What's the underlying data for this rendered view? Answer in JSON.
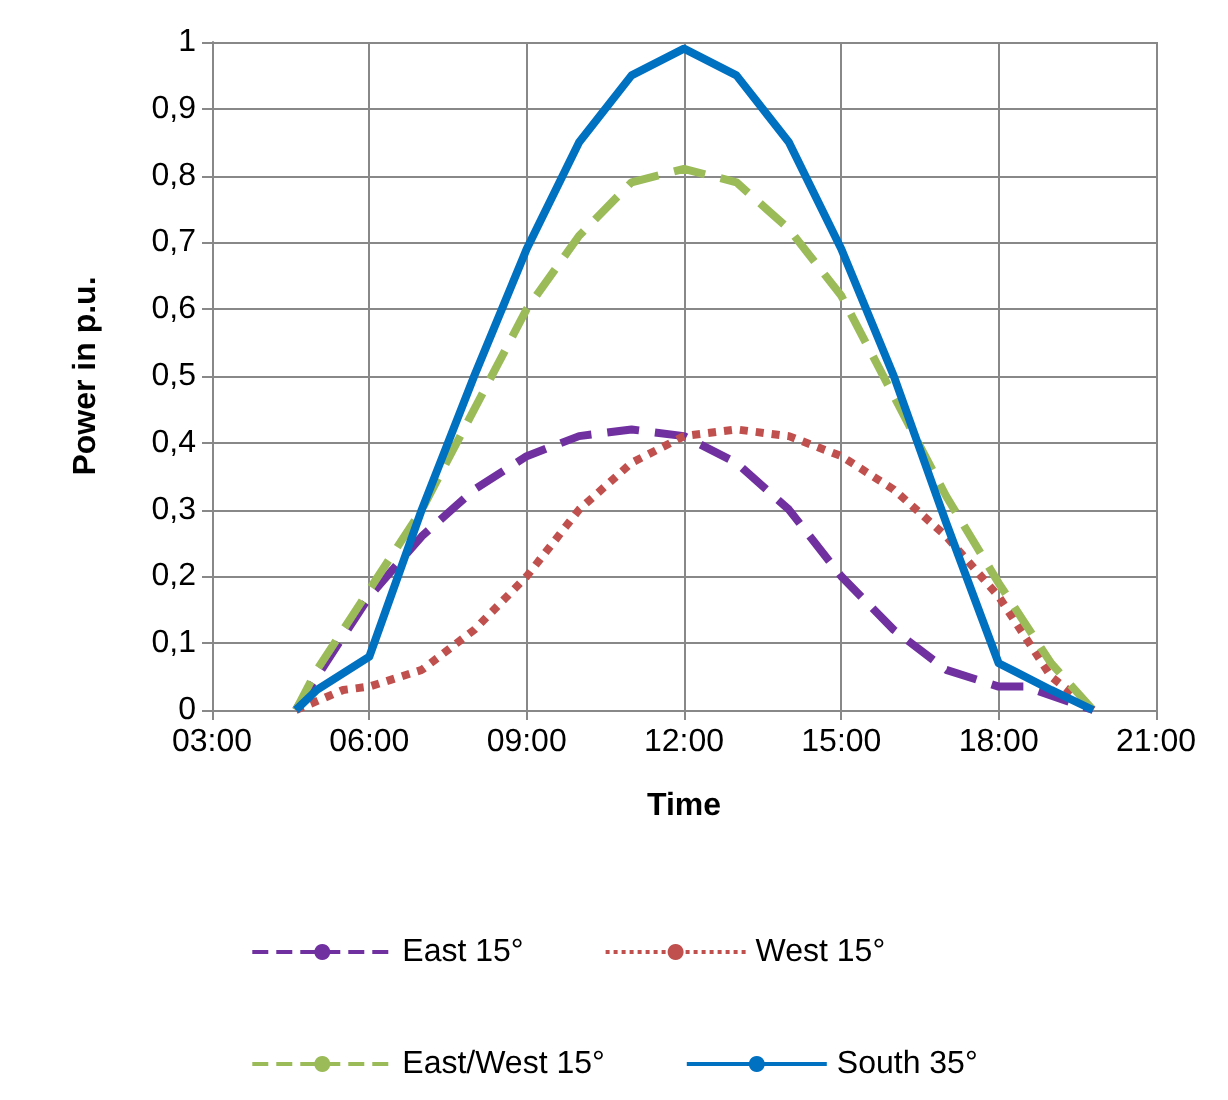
{
  "chart_data": {
    "type": "line",
    "xlabel": "Time",
    "ylabel": "Power in p.u.",
    "xlim": [
      3,
      21
    ],
    "xticks": [
      {
        "value": 3,
        "label": "03:00"
      },
      {
        "value": 6,
        "label": "06:00"
      },
      {
        "value": 9,
        "label": "09:00"
      },
      {
        "value": 12,
        "label": "12:00"
      },
      {
        "value": 15,
        "label": "15:00"
      },
      {
        "value": 18,
        "label": "18:00"
      },
      {
        "value": 21,
        "label": "21:00"
      }
    ],
    "ylim": [
      0,
      1
    ],
    "yticks": [
      0,
      {
        "value": 0.1,
        "label": "0,1"
      },
      {
        "value": 0.2,
        "label": "0,2"
      },
      {
        "value": 0.3,
        "label": "0,3"
      },
      {
        "value": 0.4,
        "label": "0,4"
      },
      {
        "value": 0.5,
        "label": "0,5"
      },
      {
        "value": 0.6,
        "label": "0,6"
      },
      {
        "value": 0.7,
        "label": "0,7"
      },
      {
        "value": 0.8,
        "label": "0,8"
      },
      {
        "value": 0.9,
        "label": "0,9"
      },
      1
    ],
    "grid": true,
    "legend": "bottom",
    "marker": "none",
    "series": [
      {
        "name": "East 15°",
        "color": "#7030a0",
        "line_style": "dashed",
        "x": [
          4.6,
          5,
          6,
          7,
          8,
          9,
          10,
          11,
          12,
          13,
          14,
          15,
          16,
          17,
          18,
          18.5,
          19.8
        ],
        "values": [
          0,
          0.05,
          0.17,
          0.26,
          0.33,
          0.38,
          0.41,
          0.42,
          0.41,
          0.37,
          0.3,
          0.2,
          0.12,
          0.06,
          0.035,
          0.035,
          0
        ]
      },
      {
        "name": "West 15°",
        "color": "#c0504d",
        "line_style": "dotted",
        "x": [
          4.6,
          5.5,
          6,
          7,
          8,
          9,
          10,
          11,
          12,
          13,
          14,
          15,
          16,
          17,
          18,
          19,
          19.8
        ],
        "values": [
          0,
          0.03,
          0.035,
          0.06,
          0.12,
          0.2,
          0.3,
          0.37,
          0.41,
          0.42,
          0.41,
          0.38,
          0.33,
          0.26,
          0.17,
          0.05,
          0
        ]
      },
      {
        "name": "East/West 15°",
        "color": "#9bbb59",
        "line_style": "dashed",
        "x": [
          4.6,
          5,
          6,
          7,
          8,
          9,
          10,
          11,
          12,
          13,
          14,
          15,
          16,
          17,
          18,
          19,
          19.8
        ],
        "values": [
          0,
          0.06,
          0.18,
          0.3,
          0.45,
          0.6,
          0.71,
          0.79,
          0.81,
          0.79,
          0.72,
          0.62,
          0.47,
          0.32,
          0.19,
          0.07,
          0
        ]
      },
      {
        "name": "South 35°",
        "color": "#0070c0",
        "line_style": "solid",
        "x": [
          4.6,
          5,
          6,
          7,
          8,
          9,
          10,
          11,
          12,
          13,
          14,
          15,
          16,
          17,
          18,
          19,
          19.8
        ],
        "values": [
          0,
          0.03,
          0.08,
          0.3,
          0.5,
          0.69,
          0.85,
          0.95,
          0.99,
          0.95,
          0.85,
          0.69,
          0.5,
          0.28,
          0.07,
          0.03,
          0
        ]
      }
    ]
  }
}
